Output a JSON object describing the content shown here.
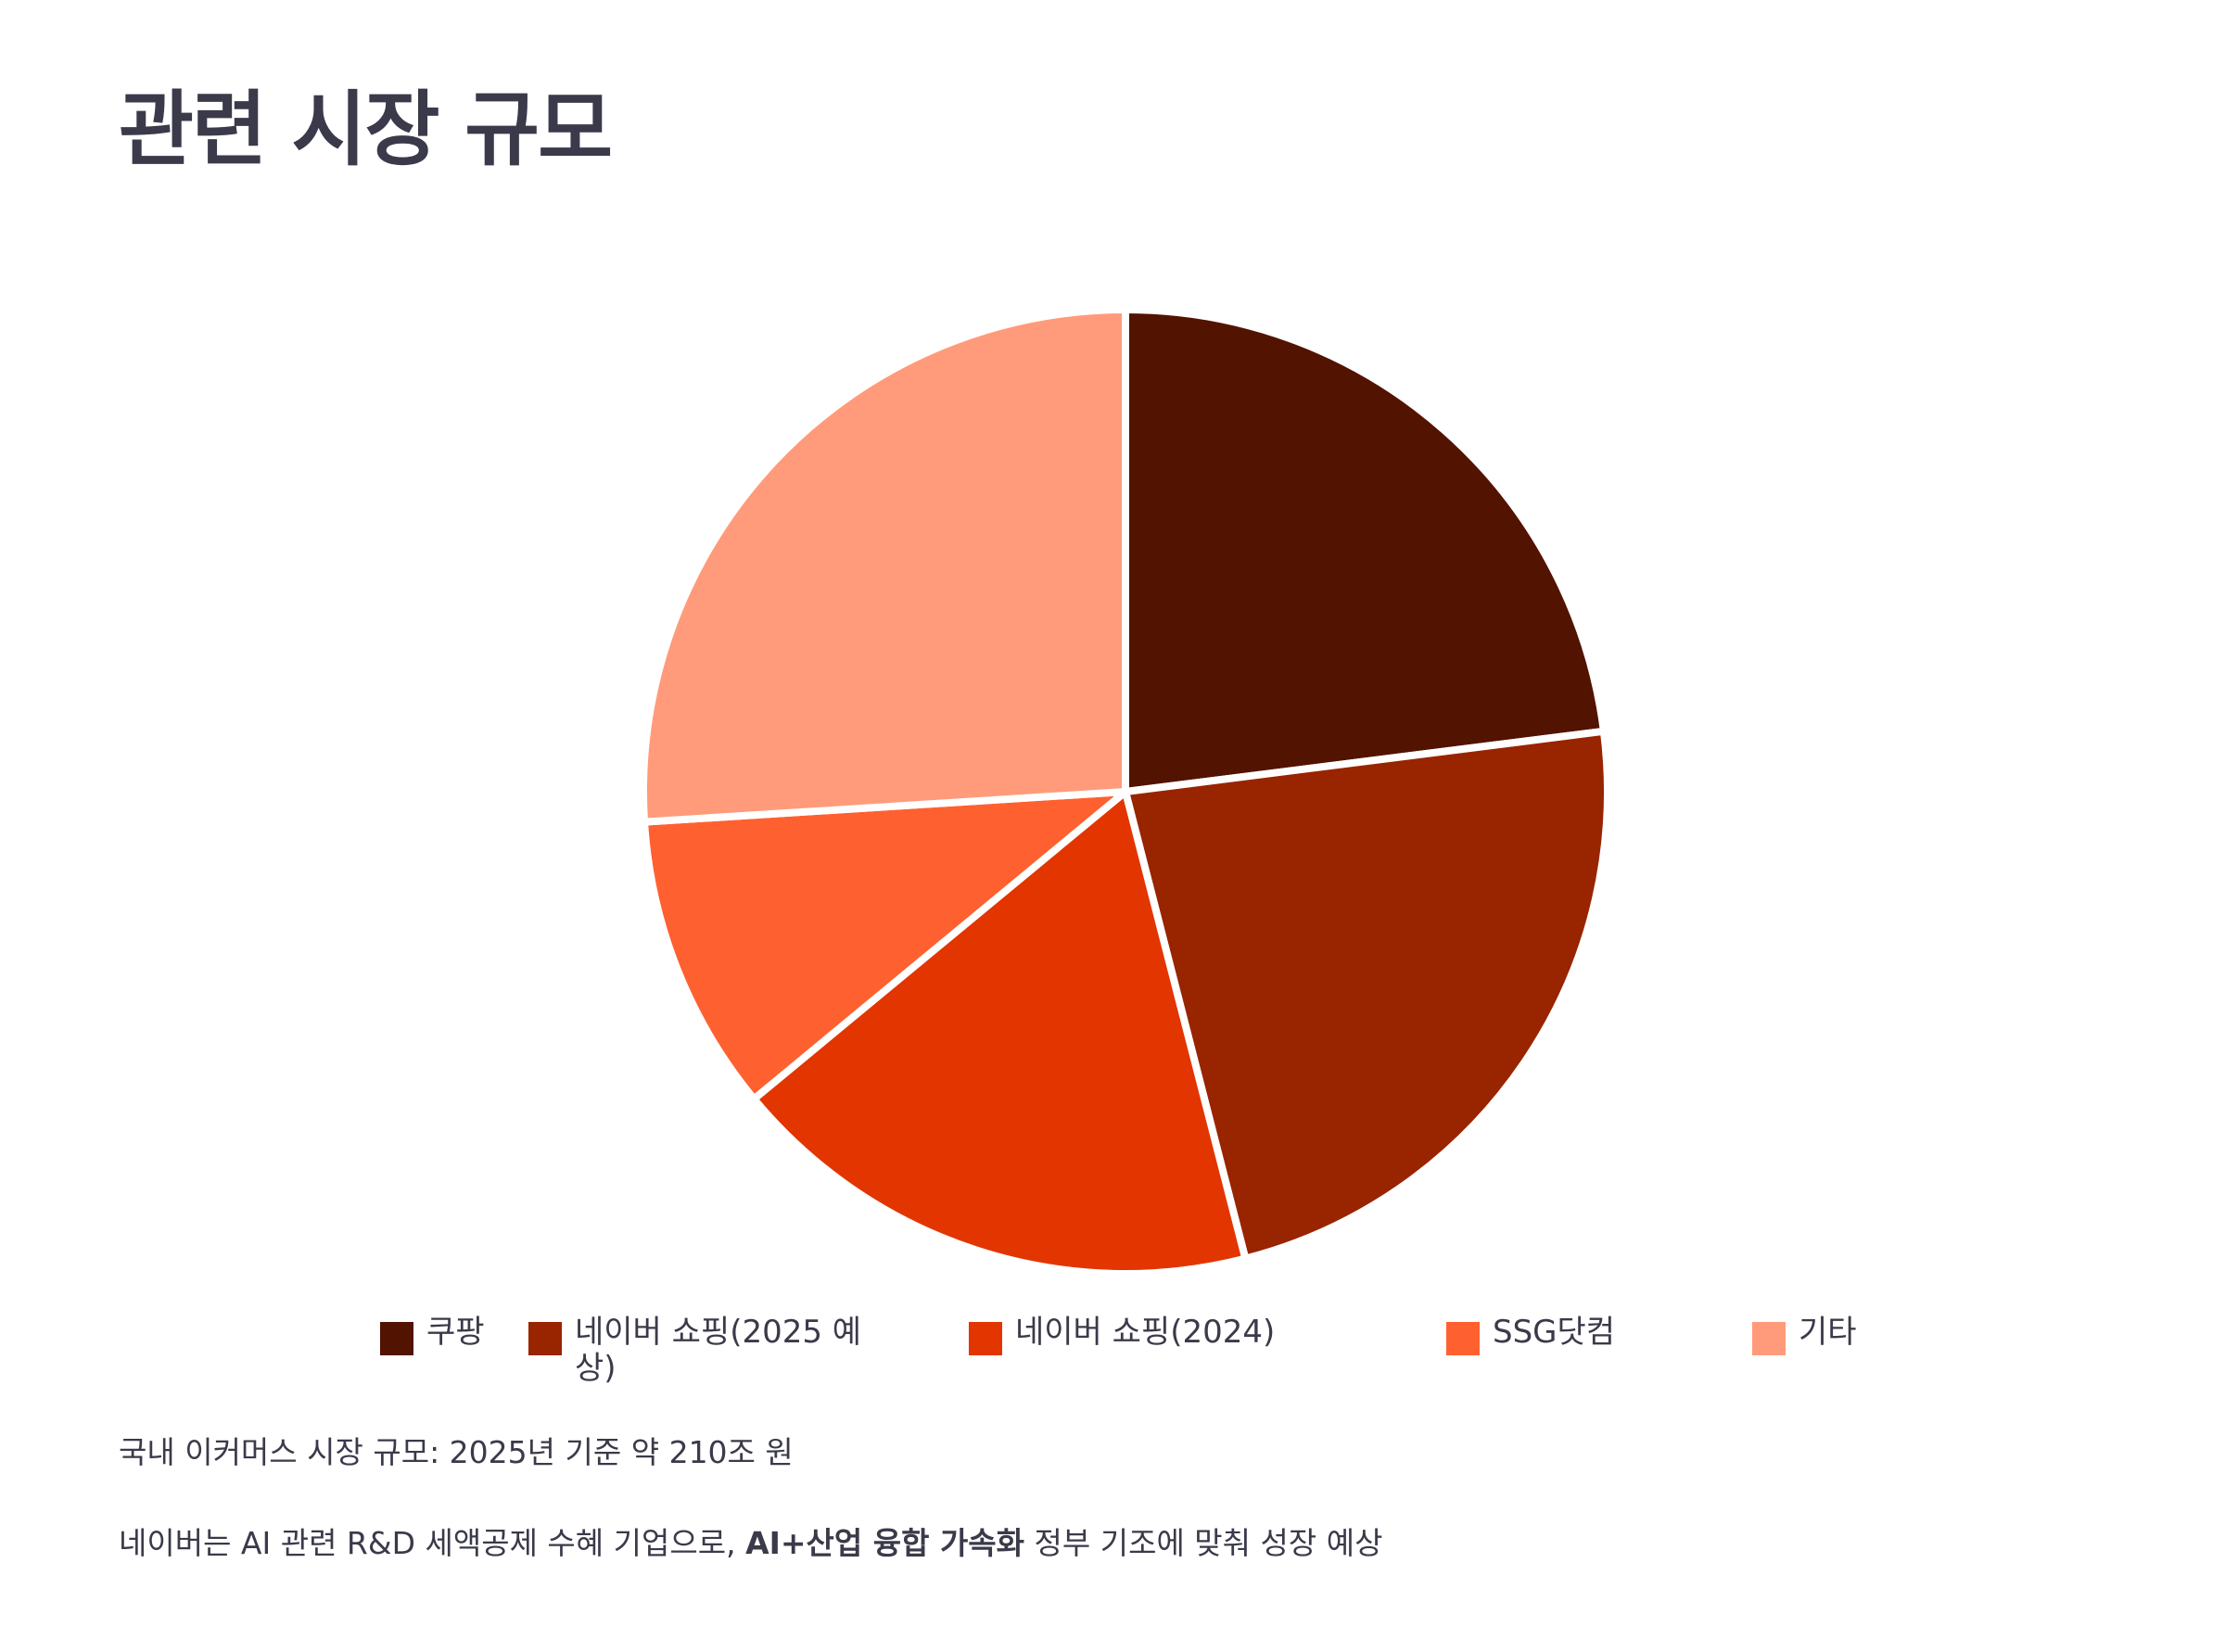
{
  "title": "관련 시장 규모",
  "chart_data": {
    "type": "pie",
    "categories": [
      "쿠팡",
      "네이버 쇼핑(2025 예상)",
      "네이버 쇼핑(2024)",
      "SSG닷컴",
      "기타"
    ],
    "values": [
      23,
      23,
      18,
      10,
      26
    ],
    "colors": [
      "#521300",
      "#992400",
      "#e33500",
      "#ff6030",
      "#ff9b7a"
    ],
    "legend_position": "bottom",
    "slice_border_color": "#ffffff"
  },
  "legend": {
    "items": [
      {
        "label_line1": "쿠팡",
        "label_line2": ""
      },
      {
        "label_line1": "네이버 쇼핑(2025 예",
        "label_line2": "상)"
      },
      {
        "label_line1": "네이버 쇼핑(2024)",
        "label_line2": ""
      },
      {
        "label_line1": "SSG닷컴",
        "label_line2": ""
      },
      {
        "label_line1": "기타",
        "label_line2": ""
      }
    ]
  },
  "notes": {
    "line1": "국내 이커머스 시장 규모: 2025년 기준 약 210조 원",
    "line2_prefix": "네이버는 AI 관련 R&D 세액공제 수혜 기업으로, ",
    "line2_bold": "AI+산업 융합 가속화",
    "line2_suffix": " 정부 기조에 맞춰 성장 예상"
  }
}
